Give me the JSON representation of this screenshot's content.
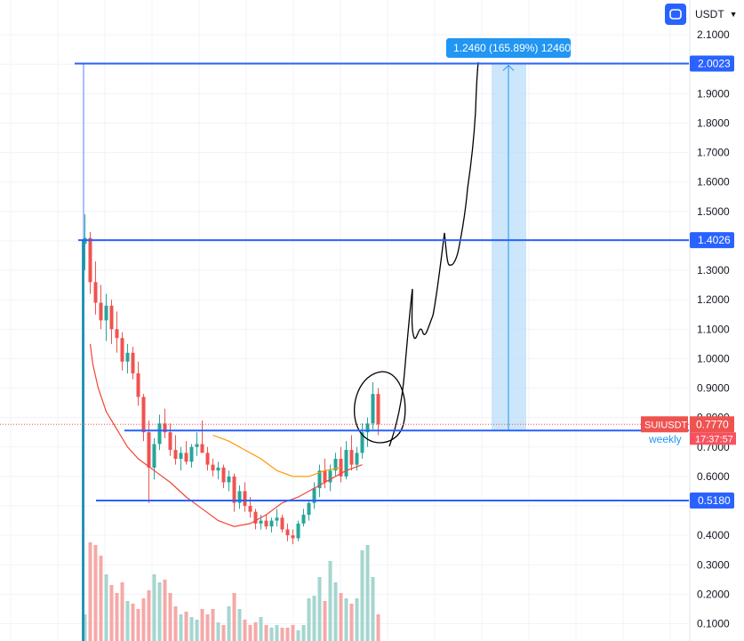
{
  "toolbar": {
    "currency": "USDT",
    "fullscreen_icon": "fullscreen-icon"
  },
  "chart_data": {
    "type": "candlestick",
    "symbol": "SUIUSDT",
    "interval_label": "weekly",
    "last_price": "0.7770",
    "countdown": "17:37:57",
    "y_ticks": [
      "2.1000",
      "1.9000",
      "1.8000",
      "1.7000",
      "1.6000",
      "1.5000",
      "1.3000",
      "1.2000",
      "1.1000",
      "1.0000",
      "0.9000",
      "0.8000",
      "0.7000",
      "0.6000",
      "0.4000",
      "0.3000",
      "0.2000",
      "0.1000"
    ],
    "ylim": [
      0.06,
      2.16
    ],
    "levels": [
      {
        "price": 2.0023,
        "label": "2.0023"
      },
      {
        "price": 1.4026,
        "label": "1.4026"
      },
      {
        "price": 0.518,
        "label": "0.5180"
      },
      {
        "price": 0.756,
        "label": ""
      }
    ],
    "measure_label": "1.2460 (165.89%) 12460",
    "candles": [
      [
        1.39,
        1.49,
        1.3,
        1.41
      ],
      [
        1.41,
        1.43,
        1.22,
        1.26
      ],
      [
        1.26,
        1.33,
        1.15,
        1.19
      ],
      [
        1.19,
        1.25,
        1.1,
        1.13
      ],
      [
        1.13,
        1.22,
        1.06,
        1.18
      ],
      [
        1.18,
        1.2,
        1.05,
        1.1
      ],
      [
        1.1,
        1.16,
        1.02,
        1.07
      ],
      [
        1.07,
        1.09,
        0.96,
        0.99
      ],
      [
        0.99,
        1.05,
        0.95,
        1.02
      ],
      [
        1.02,
        1.04,
        0.93,
        0.95
      ],
      [
        0.95,
        0.99,
        0.84,
        0.87
      ],
      [
        0.87,
        0.88,
        0.72,
        0.75
      ],
      [
        0.75,
        0.79,
        0.51,
        0.63
      ],
      [
        0.63,
        0.73,
        0.59,
        0.71
      ],
      [
        0.71,
        0.81,
        0.69,
        0.78
      ],
      [
        0.78,
        0.83,
        0.73,
        0.75
      ],
      [
        0.75,
        0.78,
        0.67,
        0.69
      ],
      [
        0.69,
        0.74,
        0.64,
        0.66
      ],
      [
        0.66,
        0.7,
        0.62,
        0.68
      ],
      [
        0.68,
        0.72,
        0.64,
        0.65
      ],
      [
        0.65,
        0.71,
        0.63,
        0.7
      ],
      [
        0.7,
        0.75,
        0.67,
        0.71
      ],
      [
        0.71,
        0.79,
        0.69,
        0.68
      ],
      [
        0.68,
        0.7,
        0.62,
        0.64
      ],
      [
        0.64,
        0.66,
        0.6,
        0.62
      ],
      [
        0.62,
        0.65,
        0.59,
        0.63
      ],
      [
        0.63,
        0.64,
        0.56,
        0.58
      ],
      [
        0.58,
        0.62,
        0.55,
        0.6
      ],
      [
        0.6,
        0.61,
        0.48,
        0.51
      ],
      [
        0.51,
        0.57,
        0.49,
        0.55
      ],
      [
        0.55,
        0.58,
        0.48,
        0.5
      ],
      [
        0.5,
        0.53,
        0.46,
        0.48
      ],
      [
        0.48,
        0.49,
        0.42,
        0.44
      ],
      [
        0.44,
        0.47,
        0.42,
        0.45
      ],
      [
        0.45,
        0.47,
        0.42,
        0.43
      ],
      [
        0.43,
        0.46,
        0.41,
        0.45
      ],
      [
        0.45,
        0.49,
        0.43,
        0.46
      ],
      [
        0.46,
        0.47,
        0.41,
        0.42
      ],
      [
        0.42,
        0.44,
        0.38,
        0.4
      ],
      [
        0.4,
        0.42,
        0.37,
        0.39
      ],
      [
        0.39,
        0.45,
        0.38,
        0.44
      ],
      [
        0.44,
        0.49,
        0.43,
        0.47
      ],
      [
        0.47,
        0.52,
        0.45,
        0.51
      ],
      [
        0.51,
        0.58,
        0.49,
        0.56
      ],
      [
        0.56,
        0.64,
        0.53,
        0.62
      ],
      [
        0.62,
        0.66,
        0.56,
        0.58
      ],
      [
        0.58,
        0.64,
        0.55,
        0.62
      ],
      [
        0.62,
        0.68,
        0.6,
        0.66
      ],
      [
        0.66,
        0.7,
        0.58,
        0.6
      ],
      [
        0.6,
        0.72,
        0.59,
        0.69
      ],
      [
        0.69,
        0.74,
        0.62,
        0.64
      ],
      [
        0.64,
        0.7,
        0.62,
        0.68
      ],
      [
        0.68,
        0.78,
        0.66,
        0.75
      ],
      [
        0.75,
        0.8,
        0.7,
        0.78
      ],
      [
        0.78,
        0.92,
        0.76,
        0.88
      ],
      [
        0.88,
        0.9,
        0.74,
        0.777
      ]
    ],
    "volume": [
      0.1,
      0.37,
      0.36,
      0.32,
      0.25,
      0.21,
      0.18,
      0.22,
      0.15,
      0.14,
      0.12,
      0.16,
      0.19,
      0.25,
      0.22,
      0.23,
      0.18,
      0.13,
      0.1,
      0.11,
      0.09,
      0.08,
      0.12,
      0.1,
      0.12,
      0.07,
      0.06,
      0.13,
      0.18,
      0.12,
      0.08,
      0.06,
      0.07,
      0.09,
      0.06,
      0.05,
      0.06,
      0.05,
      0.05,
      0.06,
      0.04,
      0.06,
      0.16,
      0.17,
      0.24,
      0.15,
      0.3,
      0.22,
      0.18,
      0.16,
      0.14,
      0.16,
      0.34,
      0.36,
      0.24,
      0.1
    ],
    "ma_red": [
      [
        1.0,
        1.05
      ],
      [
        1.5,
        0.98
      ],
      [
        2.5,
        0.9
      ],
      [
        4.0,
        0.82
      ],
      [
        6.0,
        0.76
      ],
      [
        8.0,
        0.7
      ],
      [
        10,
        0.66
      ],
      [
        13,
        0.62
      ],
      [
        16,
        0.58
      ],
      [
        19,
        0.53
      ],
      [
        22,
        0.49
      ],
      [
        25,
        0.45
      ],
      [
        28,
        0.43
      ],
      [
        31,
        0.44
      ],
      [
        34,
        0.47
      ],
      [
        37,
        0.51
      ],
      [
        40,
        0.53
      ],
      [
        43,
        0.56
      ],
      [
        46,
        0.59
      ],
      [
        49,
        0.62
      ],
      [
        52,
        0.64
      ]
    ],
    "ma_orange": [
      [
        24,
        0.74
      ],
      [
        27,
        0.72
      ],
      [
        30,
        0.69
      ],
      [
        33,
        0.66
      ],
      [
        36,
        0.62
      ],
      [
        39,
        0.6
      ],
      [
        42,
        0.6
      ],
      [
        45,
        0.62
      ],
      [
        48,
        0.63
      ]
    ]
  }
}
